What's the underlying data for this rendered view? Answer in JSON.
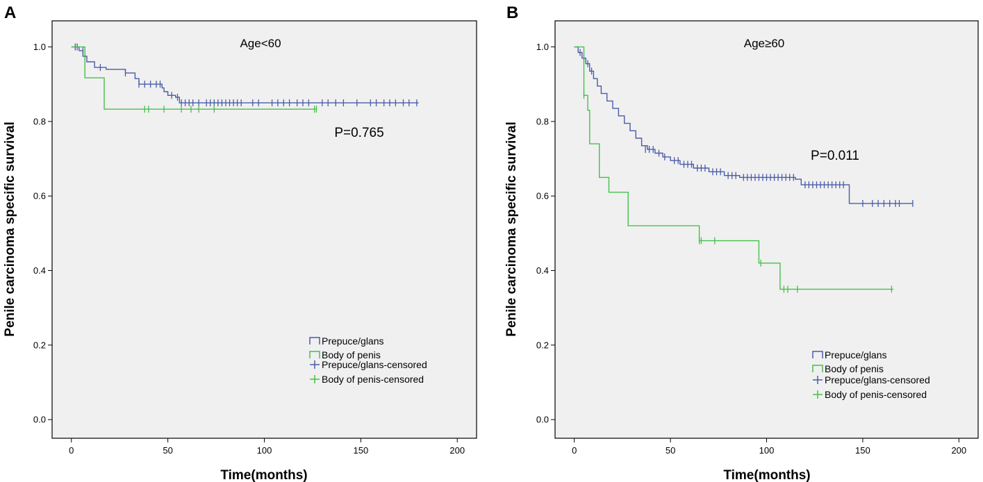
{
  "colors": {
    "prepuce_glans": "#4a5ba8",
    "body_of_penis": "#45c04a",
    "panel_bg": "#f0f0f0",
    "axis": "#000000"
  },
  "chart_data": [
    {
      "panel_label": "A",
      "type": "line",
      "title": "Age<60",
      "annotation": "P=0.765",
      "xlabel": "Time(months)",
      "ylabel": "Penile carcinoma specific survival",
      "xlim": [
        -10,
        210
      ],
      "ylim": [
        -0.05,
        1.07
      ],
      "xticks": [
        0,
        50,
        100,
        150,
        200
      ],
      "yticks": [
        0.0,
        0.2,
        0.4,
        0.6,
        0.8,
        1.0
      ],
      "ytick_labels": [
        "0.0",
        "0.2",
        "0.4",
        "0.6",
        "0.8",
        "1.0"
      ],
      "legend": [
        "Prepuce/glans",
        "Body of penis",
        "Prepuce/glans-censored",
        "Body of penis-censored"
      ],
      "legend_position": "bottom-right",
      "series": [
        {
          "name": "Prepuce/glans",
          "color_key": "prepuce_glans",
          "steps": [
            [
              0,
              1.0
            ],
            [
              4,
              0.99
            ],
            [
              6,
              0.975
            ],
            [
              8,
              0.96
            ],
            [
              12,
              0.945
            ],
            [
              18,
              0.94
            ],
            [
              28,
              0.93
            ],
            [
              33,
              0.915
            ],
            [
              35,
              0.9
            ],
            [
              47,
              0.89
            ],
            [
              48,
              0.88
            ],
            [
              50,
              0.87
            ],
            [
              54,
              0.865
            ],
            [
              56,
              0.85
            ],
            [
              180,
              0.85
            ]
          ],
          "censored": [
            [
              2,
              1.0
            ],
            [
              3,
              1.0
            ],
            [
              6,
              0.99
            ],
            [
              7,
              0.975
            ],
            [
              15,
              0.945
            ],
            [
              28,
              0.93
            ],
            [
              35,
              0.9
            ],
            [
              38,
              0.9
            ],
            [
              41,
              0.9
            ],
            [
              44,
              0.9
            ],
            [
              46,
              0.9
            ],
            [
              52,
              0.87
            ],
            [
              55,
              0.865
            ],
            [
              57,
              0.85
            ],
            [
              59,
              0.85
            ],
            [
              61,
              0.85
            ],
            [
              63,
              0.85
            ],
            [
              66,
              0.85
            ],
            [
              70,
              0.85
            ],
            [
              72,
              0.85
            ],
            [
              74,
              0.85
            ],
            [
              76,
              0.85
            ],
            [
              78,
              0.85
            ],
            [
              80,
              0.85
            ],
            [
              82,
              0.85
            ],
            [
              84,
              0.85
            ],
            [
              86,
              0.85
            ],
            [
              88,
              0.85
            ],
            [
              94,
              0.85
            ],
            [
              97,
              0.85
            ],
            [
              104,
              0.85
            ],
            [
              107,
              0.85
            ],
            [
              110,
              0.85
            ],
            [
              113,
              0.85
            ],
            [
              117,
              0.85
            ],
            [
              120,
              0.85
            ],
            [
              123,
              0.85
            ],
            [
              130,
              0.85
            ],
            [
              133,
              0.85
            ],
            [
              137,
              0.85
            ],
            [
              141,
              0.85
            ],
            [
              148,
              0.85
            ],
            [
              155,
              0.85
            ],
            [
              158,
              0.85
            ],
            [
              162,
              0.85
            ],
            [
              165,
              0.85
            ],
            [
              168,
              0.85
            ],
            [
              172,
              0.85
            ],
            [
              175,
              0.85
            ],
            [
              179,
              0.85
            ]
          ]
        },
        {
          "name": "Body of penis",
          "color_key": "body_of_penis",
          "steps": [
            [
              0,
              1.0
            ],
            [
              7,
              0.917
            ],
            [
              17,
              0.833
            ],
            [
              127,
              0.833
            ]
          ],
          "censored": [
            [
              38,
              0.833
            ],
            [
              40,
              0.833
            ],
            [
              48,
              0.833
            ],
            [
              57,
              0.833
            ],
            [
              62,
              0.833
            ],
            [
              66,
              0.833
            ],
            [
              74,
              0.833
            ],
            [
              126,
              0.833
            ],
            [
              127,
              0.833
            ]
          ]
        }
      ]
    },
    {
      "panel_label": "B",
      "type": "line",
      "title": "Age≥60",
      "annotation": "P=0.011",
      "xlabel": "Time(months)",
      "ylabel": "Penile carcinoma specific survival",
      "xlim": [
        -10,
        210
      ],
      "ylim": [
        -0.05,
        1.07
      ],
      "xticks": [
        0,
        50,
        100,
        150,
        200
      ],
      "yticks": [
        0.0,
        0.2,
        0.4,
        0.6,
        0.8,
        1.0
      ],
      "ytick_labels": [
        "0.0",
        "0.2",
        "0.4",
        "0.6",
        "0.8",
        "1.0"
      ],
      "legend": [
        "Prepuce/glans",
        "Body of penis",
        "Prepuce/glans-censored",
        "Body of penis-censored"
      ],
      "legend_position": "bottom-right",
      "series": [
        {
          "name": "Prepuce/glans",
          "color_key": "prepuce_glans",
          "steps": [
            [
              0,
              1.0
            ],
            [
              2,
              0.985
            ],
            [
              4,
              0.97
            ],
            [
              6,
              0.955
            ],
            [
              8,
              0.935
            ],
            [
              10,
              0.915
            ],
            [
              12,
              0.895
            ],
            [
              14,
              0.875
            ],
            [
              17,
              0.855
            ],
            [
              20,
              0.835
            ],
            [
              23,
              0.815
            ],
            [
              26,
              0.795
            ],
            [
              29,
              0.775
            ],
            [
              32,
              0.755
            ],
            [
              35,
              0.735
            ],
            [
              38,
              0.725
            ],
            [
              42,
              0.715
            ],
            [
              46,
              0.705
            ],
            [
              50,
              0.695
            ],
            [
              55,
              0.685
            ],
            [
              62,
              0.675
            ],
            [
              70,
              0.665
            ],
            [
              78,
              0.655
            ],
            [
              86,
              0.65
            ],
            [
              115,
              0.645
            ],
            [
              118,
              0.63
            ],
            [
              143,
              0.58
            ],
            [
              176,
              0.58
            ]
          ],
          "censored": [
            [
              3,
              0.985
            ],
            [
              5,
              0.97
            ],
            [
              7,
              0.955
            ],
            [
              9,
              0.935
            ],
            [
              37,
              0.725
            ],
            [
              39,
              0.725
            ],
            [
              41,
              0.725
            ],
            [
              44,
              0.715
            ],
            [
              47,
              0.705
            ],
            [
              52,
              0.695
            ],
            [
              54,
              0.695
            ],
            [
              57,
              0.685
            ],
            [
              59,
              0.685
            ],
            [
              61,
              0.685
            ],
            [
              64,
              0.675
            ],
            [
              66,
              0.675
            ],
            [
              68,
              0.675
            ],
            [
              72,
              0.665
            ],
            [
              74,
              0.665
            ],
            [
              76,
              0.665
            ],
            [
              80,
              0.655
            ],
            [
              82,
              0.655
            ],
            [
              84,
              0.655
            ],
            [
              88,
              0.65
            ],
            [
              90,
              0.65
            ],
            [
              92,
              0.65
            ],
            [
              94,
              0.65
            ],
            [
              96,
              0.65
            ],
            [
              98,
              0.65
            ],
            [
              100,
              0.65
            ],
            [
              102,
              0.65
            ],
            [
              104,
              0.65
            ],
            [
              106,
              0.65
            ],
            [
              108,
              0.65
            ],
            [
              110,
              0.65
            ],
            [
              112,
              0.65
            ],
            [
              114,
              0.65
            ],
            [
              120,
              0.63
            ],
            [
              122,
              0.63
            ],
            [
              124,
              0.63
            ],
            [
              126,
              0.63
            ],
            [
              128,
              0.63
            ],
            [
              130,
              0.63
            ],
            [
              132,
              0.63
            ],
            [
              134,
              0.63
            ],
            [
              136,
              0.63
            ],
            [
              138,
              0.63
            ],
            [
              140,
              0.63
            ],
            [
              150,
              0.58
            ],
            [
              155,
              0.58
            ],
            [
              158,
              0.58
            ],
            [
              161,
              0.58
            ],
            [
              164,
              0.58
            ],
            [
              167,
              0.58
            ],
            [
              169,
              0.58
            ],
            [
              176,
              0.58
            ]
          ]
        },
        {
          "name": "Body of penis",
          "color_key": "body_of_penis",
          "steps": [
            [
              0,
              1.0
            ],
            [
              5,
              0.87
            ],
            [
              7,
              0.83
            ],
            [
              8,
              0.74
            ],
            [
              13,
              0.65
            ],
            [
              18,
              0.61
            ],
            [
              28,
              0.52
            ],
            [
              65,
              0.48
            ],
            [
              96,
              0.42
            ],
            [
              107,
              0.35
            ],
            [
              166,
              0.35
            ]
          ],
          "censored": [
            [
              5,
              0.87
            ],
            [
              65,
              0.48
            ],
            [
              66,
              0.48
            ],
            [
              73,
              0.48
            ],
            [
              97,
              0.42
            ],
            [
              109,
              0.35
            ],
            [
              111,
              0.35
            ],
            [
              116,
              0.35
            ],
            [
              165,
              0.35
            ]
          ]
        }
      ]
    }
  ]
}
